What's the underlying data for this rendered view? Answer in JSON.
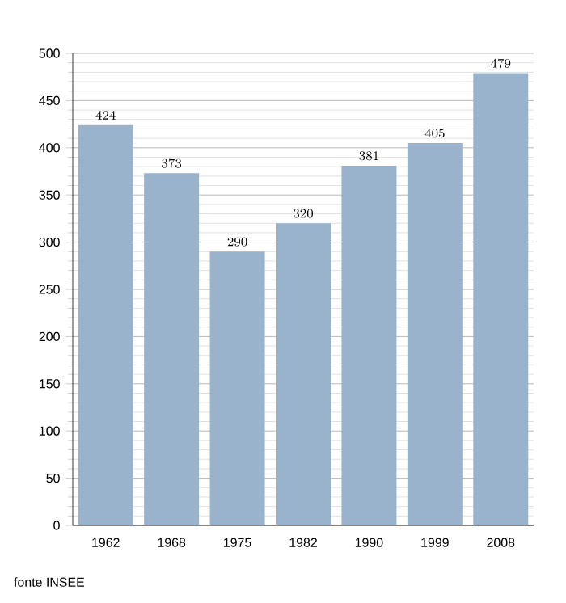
{
  "chart_data": {
    "type": "bar",
    "categories": [
      "1962",
      "1968",
      "1975",
      "1982",
      "1990",
      "1999",
      "2008"
    ],
    "values": [
      424,
      373,
      290,
      320,
      381,
      405,
      479
    ],
    "color": "#9ab3cc",
    "ylim": [
      0,
      500
    ],
    "yticks": [
      0,
      50,
      100,
      150,
      200,
      250,
      300,
      350,
      400,
      450,
      500
    ],
    "grid": "y",
    "data_labels": true,
    "annotations": [
      "fonte INSEE"
    ]
  }
}
